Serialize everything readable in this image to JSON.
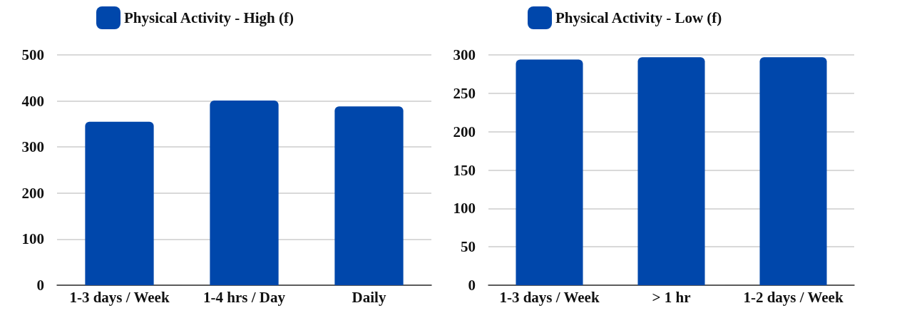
{
  "chart_data": [
    {
      "type": "bar",
      "categories": [
        "1-3 days / Week",
        "1-4 hrs / Day",
        "Daily"
      ],
      "series": [
        {
          "name": "Physical Activity - High (f)",
          "color": "#0047ab",
          "values": [
            355,
            401,
            388
          ]
        }
      ],
      "ylim": [
        0,
        500
      ],
      "yticks": [
        0,
        100,
        200,
        300,
        400,
        500
      ],
      "grid": "y",
      "legend": "top"
    },
    {
      "type": "bar",
      "categories": [
        "1-3 days / Week",
        "> 1 hr",
        "1-2 days / Week"
      ],
      "series": [
        {
          "name": "Physical Activity - Low (f)",
          "color": "#0047ab",
          "values": [
            294,
            297,
            297
          ]
        }
      ],
      "ylim": [
        0,
        300
      ],
      "yticks": [
        0,
        50,
        100,
        150,
        200,
        250,
        300
      ],
      "grid": "y",
      "legend": "top"
    }
  ]
}
